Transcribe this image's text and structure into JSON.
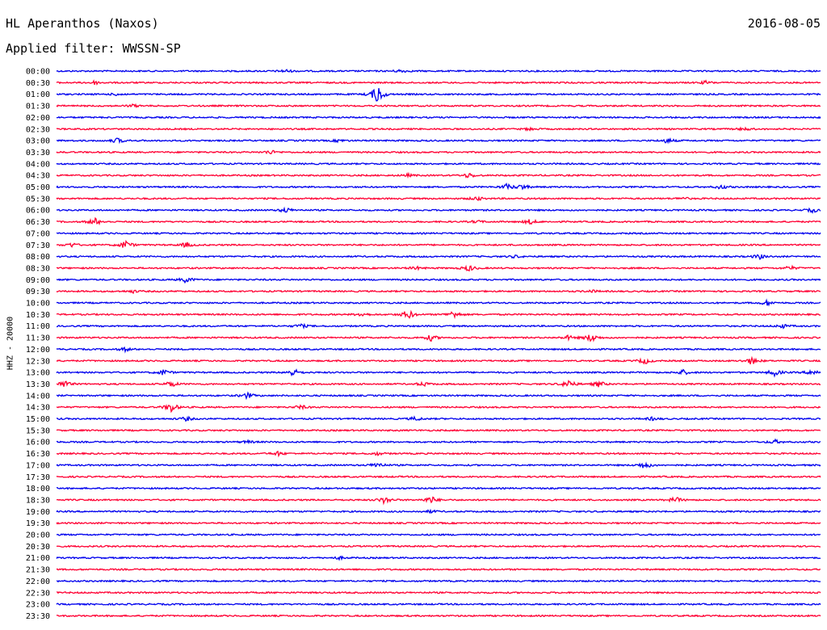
{
  "header": {
    "station": "HL Aperanthos (Naxos)",
    "date": "2016-08-05",
    "filter": "Applied filter: WWSSN-SP"
  },
  "colors": {
    "even": "#0000ee",
    "odd": "#ff0033"
  },
  "chart_data": {
    "type": "line",
    "title": "HL Aperanthos (Naxos)",
    "ylabel": "HHZ - 20000",
    "traces": [
      {
        "label": "00:00",
        "events": [
          [
            0.3,
            0.6
          ],
          [
            0.45,
            0.6
          ]
        ]
      },
      {
        "label": "00:30",
        "events": [
          [
            0.05,
            0.7
          ],
          [
            0.85,
            0.6
          ]
        ]
      },
      {
        "label": "01:00",
        "events": [
          [
            0.42,
            4.0
          ],
          [
            0.08,
            0.5
          ]
        ]
      },
      {
        "label": "01:30",
        "events": [
          [
            0.1,
            0.5
          ]
        ]
      },
      {
        "label": "02:00",
        "events": []
      },
      {
        "label": "02:30",
        "events": [
          [
            0.62,
            0.5
          ],
          [
            0.9,
            0.6
          ]
        ]
      },
      {
        "label": "03:00",
        "events": [
          [
            0.08,
            1.0
          ],
          [
            0.37,
            0.5
          ],
          [
            0.8,
            1.0
          ]
        ]
      },
      {
        "label": "03:30",
        "events": [
          [
            0.28,
            0.8
          ]
        ]
      },
      {
        "label": "04:00",
        "events": []
      },
      {
        "label": "04:30",
        "events": [
          [
            0.54,
            1.0
          ],
          [
            0.46,
            0.5
          ]
        ]
      },
      {
        "label": "05:00",
        "events": [
          [
            0.59,
            1.2
          ],
          [
            0.61,
            1.0
          ],
          [
            0.87,
            0.8
          ]
        ]
      },
      {
        "label": "05:30",
        "events": [
          [
            0.55,
            0.8
          ],
          [
            0.82,
            0.5
          ]
        ]
      },
      {
        "label": "06:00",
        "events": [
          [
            0.3,
            1.0
          ],
          [
            0.99,
            0.8
          ]
        ]
      },
      {
        "label": "06:30",
        "events": [
          [
            0.05,
            1.5
          ],
          [
            0.62,
            1.0
          ],
          [
            0.55,
            0.5
          ]
        ]
      },
      {
        "label": "07:00",
        "events": []
      },
      {
        "label": "07:30",
        "events": [
          [
            0.09,
            1.8
          ],
          [
            0.17,
            1.0
          ],
          [
            0.02,
            0.8
          ]
        ]
      },
      {
        "label": "08:00",
        "events": [
          [
            0.92,
            1.0
          ],
          [
            0.6,
            0.5
          ]
        ]
      },
      {
        "label": "08:30",
        "events": [
          [
            0.54,
            1.2
          ],
          [
            0.47,
            0.6
          ],
          [
            0.96,
            0.8
          ]
        ]
      },
      {
        "label": "09:00",
        "events": [
          [
            0.17,
            1.2
          ]
        ]
      },
      {
        "label": "09:30",
        "events": [
          [
            0.1,
            0.5
          ],
          [
            0.7,
            0.5
          ]
        ]
      },
      {
        "label": "10:00",
        "events": [
          [
            0.93,
            1.0
          ]
        ]
      },
      {
        "label": "10:30",
        "events": [
          [
            0.46,
            2.0
          ],
          [
            0.52,
            1.5
          ],
          [
            0.4,
            0.8
          ]
        ]
      },
      {
        "label": "11:00",
        "events": [
          [
            0.32,
            0.8
          ],
          [
            0.95,
            0.8
          ]
        ]
      },
      {
        "label": "11:30",
        "events": [
          [
            0.49,
            1.2
          ],
          [
            0.7,
            1.8
          ],
          [
            0.67,
            0.8
          ]
        ]
      },
      {
        "label": "12:00",
        "events": [
          [
            0.09,
            0.7
          ]
        ]
      },
      {
        "label": "12:30",
        "events": [
          [
            0.77,
            1.2
          ],
          [
            0.91,
            1.5
          ]
        ]
      },
      {
        "label": "13:00",
        "events": [
          [
            0.14,
            1.2
          ],
          [
            0.31,
            1.6
          ],
          [
            0.82,
            1.0
          ],
          [
            0.94,
            1.4
          ],
          [
            0.99,
            1.2
          ]
        ]
      },
      {
        "label": "13:30",
        "events": [
          [
            0.01,
            1.5
          ],
          [
            0.15,
            1.2
          ],
          [
            0.67,
            1.8
          ],
          [
            0.71,
            1.2
          ],
          [
            0.48,
            0.8
          ]
        ]
      },
      {
        "label": "14:00",
        "events": [
          [
            0.25,
            1.2
          ]
        ]
      },
      {
        "label": "14:30",
        "events": [
          [
            0.15,
            2.0
          ],
          [
            0.32,
            0.8
          ]
        ]
      },
      {
        "label": "15:00",
        "events": [
          [
            0.17,
            0.8
          ],
          [
            0.47,
            0.8
          ],
          [
            0.78,
            0.6
          ]
        ]
      },
      {
        "label": "15:30",
        "events": []
      },
      {
        "label": "16:00",
        "events": [
          [
            0.94,
            0.8
          ],
          [
            0.25,
            0.5
          ]
        ]
      },
      {
        "label": "16:30",
        "events": [
          [
            0.29,
            0.8
          ],
          [
            0.42,
            0.6
          ]
        ]
      },
      {
        "label": "17:00",
        "events": [
          [
            0.42,
            1.2
          ],
          [
            0.77,
            1.5
          ]
        ]
      },
      {
        "label": "17:30",
        "events": []
      },
      {
        "label": "18:00",
        "events": []
      },
      {
        "label": "18:30",
        "events": [
          [
            0.43,
            1.5
          ],
          [
            0.49,
            1.5
          ],
          [
            0.81,
            1.2
          ]
        ]
      },
      {
        "label": "19:00",
        "events": [
          [
            0.49,
            0.5
          ]
        ]
      },
      {
        "label": "19:30",
        "events": []
      },
      {
        "label": "20:00",
        "events": []
      },
      {
        "label": "20:30",
        "events": []
      },
      {
        "label": "21:00",
        "events": [
          [
            0.37,
            0.5
          ]
        ]
      },
      {
        "label": "21:30",
        "events": []
      },
      {
        "label": "22:00",
        "events": []
      },
      {
        "label": "22:30",
        "events": []
      },
      {
        "label": "23:00",
        "events": []
      },
      {
        "label": "23:30",
        "events": []
      }
    ]
  }
}
